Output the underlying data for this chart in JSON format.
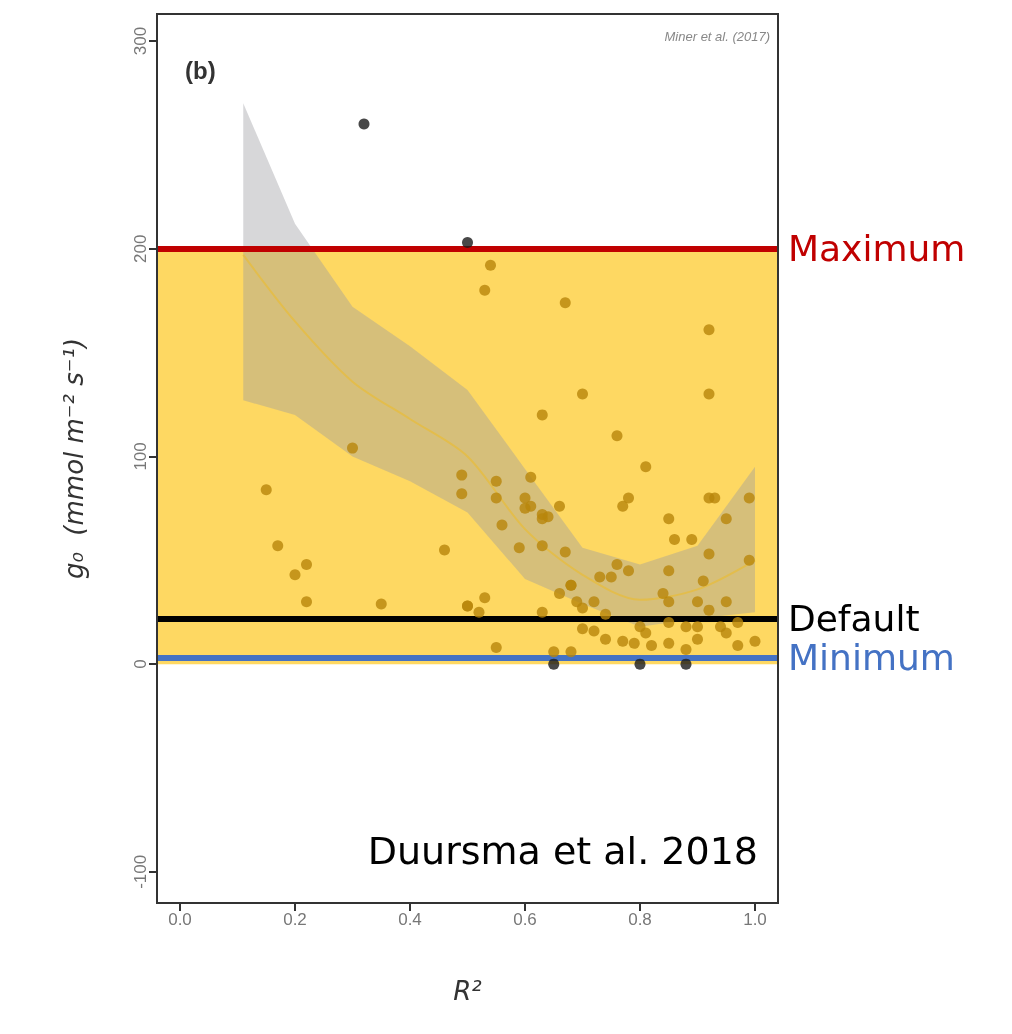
{
  "chart_data": {
    "type": "scatter",
    "xlabel": "R²",
    "ylabel": "g₀  (mmol m⁻² s⁻¹)",
    "annotations": [
      "(b)",
      "Miner et al. (2017)",
      "Duursma et al. 2018"
    ],
    "xlim": [
      -0.04,
      1.04
    ],
    "xticks": [
      {
        "value": 0,
        "label": "0.0"
      },
      0.2,
      0.4,
      0.6,
      0.8,
      {
        "value": 1,
        "label": "1.0"
      }
    ],
    "ylim": [
      -115,
      313
    ],
    "yticks": [
      -100,
      0,
      100,
      200,
      300
    ],
    "grid": false,
    "marker": "circle",
    "bands": [
      {
        "axis": "y",
        "from": 0,
        "to": 200,
        "color": "#fed862"
      }
    ],
    "ref_lines": [
      {
        "axis": "y",
        "value": 200,
        "label": "Maximum",
        "color": "#c00000"
      },
      {
        "axis": "y",
        "value": 22,
        "label": "Default",
        "color": "#000000"
      },
      {
        "axis": "y",
        "value": 3,
        "label": "Minimum",
        "color": "#4472c4"
      }
    ],
    "series": [
      {
        "color": "#1a1a1a",
        "x": [
          0.32,
          0.5,
          0.65,
          0.8,
          0.88
        ],
        "values": [
          260,
          203,
          0,
          0,
          0
        ]
      },
      {
        "color": "#b8860b",
        "x": [
          0.54,
          0.53,
          0.67,
          0.92,
          0.92,
          0.7,
          0.3,
          0.63,
          0.76,
          0.81,
          0.15,
          0.49,
          0.49,
          0.55,
          0.55,
          0.61,
          0.6,
          0.61,
          0.6,
          0.63,
          0.64,
          0.56,
          0.66,
          0.17,
          0.46,
          0.2,
          0.22,
          0.22,
          0.35,
          0.5,
          0.53,
          0.52,
          0.55,
          0.59,
          0.63,
          0.67,
          0.68,
          0.78,
          0.77,
          0.92,
          0.93,
          0.99,
          0.85,
          0.95,
          0.86,
          0.89,
          0.92,
          0.99,
          0.85,
          0.91,
          0.76,
          0.78,
          0.73,
          0.75,
          0.68,
          0.66,
          0.69,
          0.72,
          0.7,
          0.84,
          0.85,
          0.9,
          0.92,
          0.95,
          0.74,
          0.7,
          0.72,
          0.74,
          0.8,
          0.81,
          0.77,
          0.79,
          0.82,
          0.85,
          0.85,
          0.88,
          0.9,
          0.9,
          0.88,
          0.94,
          0.95,
          0.97,
          1.0,
          0.97,
          0.65,
          0.68,
          0.5,
          0.63,
          0.63
        ],
        "values": [
          192,
          180,
          174,
          161,
          130,
          130,
          104,
          120,
          110,
          95,
          84,
          91,
          82,
          88,
          80,
          90,
          80,
          76,
          75,
          72,
          71,
          67,
          76,
          57,
          55,
          43,
          48,
          30,
          29,
          28,
          32,
          25,
          8,
          56,
          57,
          54,
          38,
          80,
          76,
          80,
          80,
          80,
          70,
          70,
          60,
          60,
          53,
          50,
          45,
          40,
          48,
          45,
          42,
          42,
          38,
          34,
          30,
          30,
          27,
          34,
          30,
          30,
          26,
          30,
          24,
          17,
          16,
          12,
          18,
          15,
          11,
          10,
          9,
          10,
          20,
          18,
          18,
          12,
          7,
          18,
          15,
          9,
          11,
          20,
          6,
          6,
          28,
          25,
          70
        ]
      },
      {
        "type": "line",
        "color": "#e3bd4c",
        "marker": "none",
        "x": [
          0.11,
          0.2,
          0.3,
          0.4,
          0.5,
          0.6,
          0.7,
          0.8,
          0.9,
          1.0
        ],
        "values": [
          197,
          165,
          136,
          118,
          100,
          65,
          43,
          31,
          36,
          50
        ],
        "lower": [
          127,
          120,
          100,
          88,
          73,
          41,
          29,
          18,
          22,
          25
        ],
        "upper": [
          270,
          212,
          172,
          153,
          132,
          94,
          56,
          48,
          57,
          95
        ]
      }
    ]
  }
}
